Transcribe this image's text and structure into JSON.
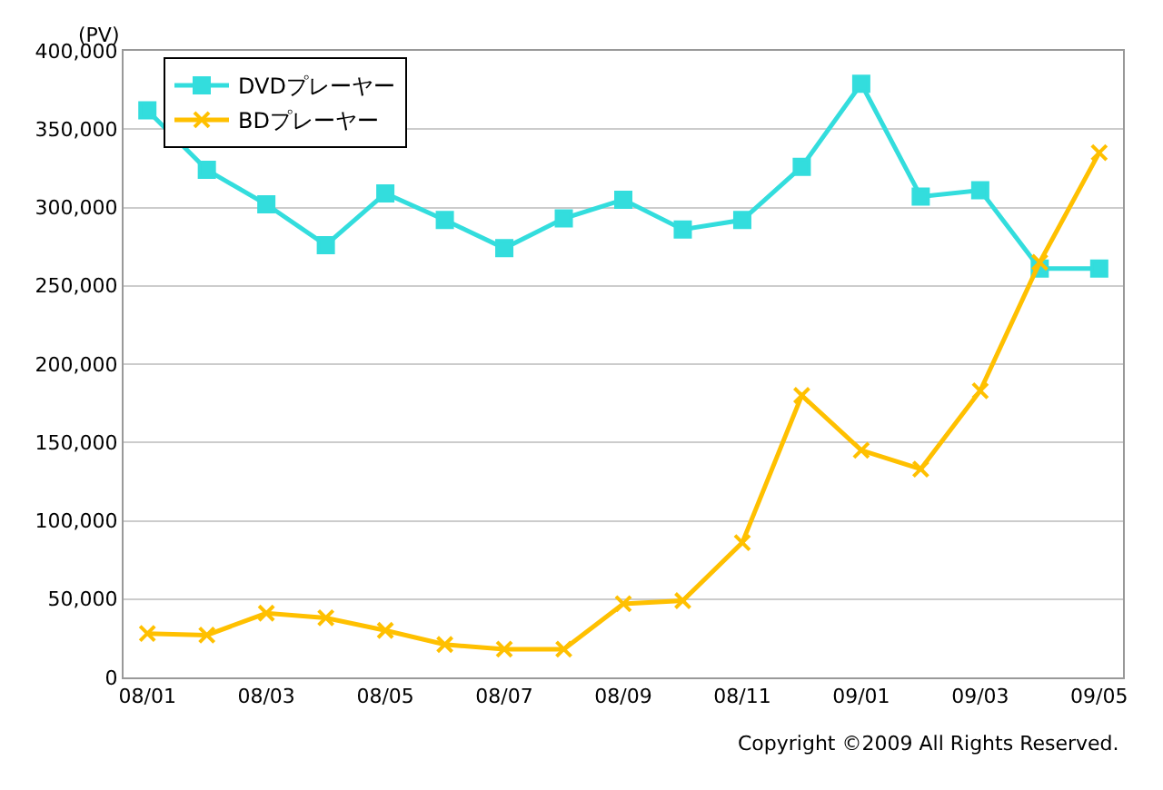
{
  "chart_data": {
    "type": "line",
    "ylabel": "(PV)",
    "categories": [
      "08/01",
      null,
      "08/03",
      null,
      "08/05",
      null,
      "08/07",
      null,
      "08/09",
      null,
      "08/11",
      null,
      "09/01",
      null,
      "09/03",
      null,
      "09/05"
    ],
    "series": [
      {
        "name": "DVDプレーヤー",
        "color": "#33dddd",
        "marker": "square",
        "values": [
          362000,
          324000,
          302000,
          276000,
          309000,
          292000,
          274000,
          293000,
          305000,
          286000,
          292000,
          326000,
          379000,
          307000,
          311000,
          261000,
          261000
        ]
      },
      {
        "name": "BDプレーヤー",
        "color": "#ffc000",
        "marker": "cross",
        "values": [
          28000,
          27000,
          41000,
          38000,
          30000,
          21000,
          18000,
          18000,
          47000,
          49000,
          86000,
          180000,
          145000,
          133000,
          183000,
          265000,
          335000
        ]
      }
    ],
    "ylim": [
      0,
      400000
    ],
    "yticks": [
      0,
      {
        "value": 50000,
        "label": "50,000"
      },
      {
        "value": 100000,
        "label": "100,000"
      },
      {
        "value": 150000,
        "label": "150,000"
      },
      {
        "value": 200000,
        "label": "200,000"
      },
      {
        "value": 250000,
        "label": "250,000"
      },
      {
        "value": 300000,
        "label": "300,000"
      },
      {
        "value": 350000,
        "label": "350,000"
      },
      {
        "value": 400000,
        "label": "400,000"
      }
    ],
    "grid": "y",
    "legend": "top left",
    "line_style": "solid",
    "annotations": [
      "Copyright ©2009 All Rights Reserved."
    ]
  }
}
